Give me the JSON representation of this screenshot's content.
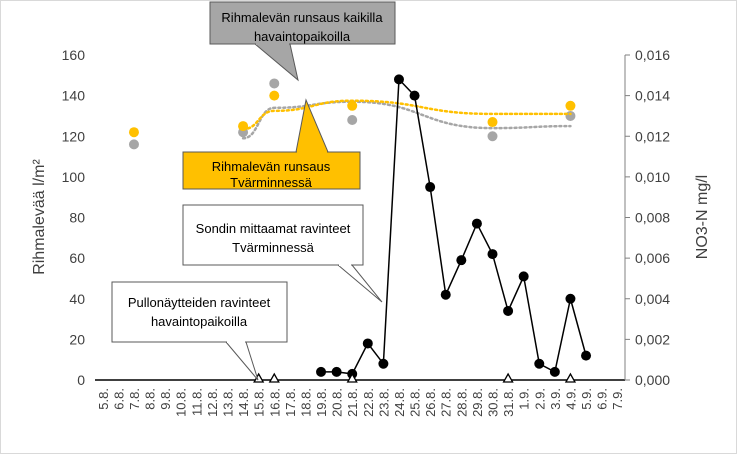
{
  "chart_data": {
    "type": "line",
    "title": "",
    "xlabel": "",
    "ylabel": "Rihmalevää l/m²",
    "y2label": "NO3-N mg/l",
    "ylim": [
      0,
      160
    ],
    "y_ticks": [
      "0",
      "20",
      "40",
      "60",
      "80",
      "100",
      "120",
      "140",
      "160"
    ],
    "y2lim": [
      0,
      0.016
    ],
    "y2_ticks": [
      "0,000",
      "0,002",
      "0,004",
      "0,006",
      "0,008",
      "0,010",
      "0,012",
      "0,014",
      "0,016"
    ],
    "grid": false,
    "categories": [
      "5.8.",
      "6.8.",
      "7.8.",
      "8.8.",
      "9.8.",
      "10.8.",
      "11.8.",
      "12.8.",
      "13.8.",
      "14.8.",
      "15.8.",
      "16.8.",
      "17.8.",
      "18.8.",
      "19.8.",
      "20.8.",
      "21.8.",
      "22.8.",
      "23.8.",
      "24.8.",
      "25.8.",
      "26.8.",
      "27.8.",
      "28.8.",
      "29.8.",
      "30.8.",
      "31.8.",
      "1.9.",
      "2.9.",
      "3.9.",
      "4.9.",
      "5.9.",
      "6.9.",
      "7.9."
    ],
    "series": [
      {
        "name": "Rihmalevän runsaus Tvärminnessä",
        "axis": "left",
        "color": "#FFC000",
        "x": [
          "7.8.",
          "14.8.",
          "16.8.",
          "21.8.",
          "30.8.",
          "4.9."
        ],
        "values": [
          122,
          125,
          140,
          135,
          127,
          135
        ],
        "trend_line": "dotted"
      },
      {
        "name": "Rihmalevän runsaus kaikilla havaintopaikoilla",
        "axis": "left",
        "color": "#A6A6A6",
        "x": [
          "7.8.",
          "14.8.",
          "16.8.",
          "21.8.",
          "30.8.",
          "4.9."
        ],
        "values": [
          116,
          122,
          146,
          128,
          120,
          130
        ],
        "trend_line": "dotted"
      },
      {
        "name": "Sondin mittaamat ravinteet Tvärminnessä",
        "axis": "right",
        "color": "#000000",
        "x": [
          "19.8.",
          "20.8.",
          "21.8.",
          "22.8.",
          "23.8.",
          "24.8.",
          "25.8.",
          "26.8.",
          "27.8.",
          "28.8.",
          "29.8.",
          "30.8.",
          "31.8.",
          "1.9.",
          "2.9.",
          "3.9.",
          "4.9.",
          "5.9."
        ],
        "values": [
          0.0004,
          0.0004,
          0.0003,
          0.0018,
          0.0008,
          0.0148,
          0.014,
          0.0095,
          0.0042,
          0.0059,
          0.0077,
          0.0062,
          0.0034,
          0.0051,
          0.0008,
          0.0004,
          0.004,
          0.0012
        ]
      },
      {
        "name": "Pullonäytteiden ravinteet havaintopaikoilla",
        "axis": "right",
        "color": "#000000",
        "marker": "triangle-open",
        "x": [
          "15.8.",
          "16.8.",
          "21.8.",
          "31.8.",
          "4.9."
        ],
        "values": [
          0,
          0,
          0,
          0,
          0
        ]
      }
    ],
    "callouts": [
      {
        "text": "Rihmalevän runsaus kaikilla havaintopaikoilla",
        "lines": [
          "Rihmalevän runsaus kaikilla",
          "havaintopaikoilla"
        ],
        "fill": "#A6A6A6",
        "points_to": "Rihmalevän runsaus kaikilla havaintopaikoilla"
      },
      {
        "text": "Rihmalevän runsaus Tvärminnessä",
        "lines": [
          "Rihmalevän runsaus",
          "Tvärminnessä"
        ],
        "fill": "#FFC000",
        "points_to": "Rihmalevän runsaus Tvärminnessä"
      },
      {
        "text": "Sondin mittaamat ravinteet Tvärminnessä",
        "lines": [
          "Sondin mittaamat ravinteet",
          "Tvärminnessä"
        ],
        "fill": "#FFFFFF",
        "points_to": "Sondin mittaamat ravinteet Tvärminnessä"
      },
      {
        "text": "Pullonäytteiden ravinteet havaintopaikoilla",
        "lines": [
          "Pullonäytteiden ravinteet",
          "havaintopaikoilla"
        ],
        "fill": "#FFFFFF",
        "points_to": "Pullonäytteiden ravinteet havaintopaikoilla"
      }
    ]
  }
}
